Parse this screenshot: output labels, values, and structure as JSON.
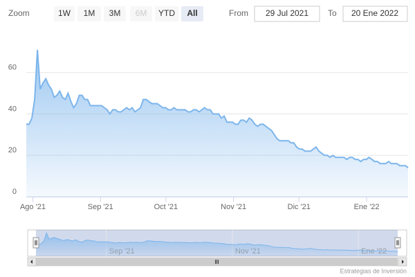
{
  "chart_data": {
    "type": "area",
    "range_selector": {
      "label": "Zoom",
      "buttons": [
        "1W",
        "1M",
        "3M",
        "6M",
        "YTD",
        "All"
      ],
      "selected": 5,
      "disabled": [
        3
      ],
      "from_label": "From",
      "to_label": "To"
    },
    "xlim": [
      {
        "value": "2021-07-29",
        "label": "29 Jul 2021"
      },
      {
        "value": "2022-01-20",
        "label": "20 Ene 2022"
      }
    ],
    "xticks": [
      {
        "value": "2021-08",
        "label": "Ago '21"
      },
      {
        "value": "2021-09",
        "label": "Sep '21"
      },
      {
        "value": "2021-10",
        "label": "Oct '21"
      },
      {
        "value": "2021-11",
        "label": "Nov '21"
      },
      {
        "value": "2021-12",
        "label": "Dic '21"
      },
      {
        "value": "2022-01",
        "label": "Ene '22"
      }
    ],
    "navigator_xticks": [
      1,
      3,
      5
    ],
    "ylim": [
      0,
      80
    ],
    "yticks": [
      0,
      20,
      40,
      60
    ],
    "grid": true,
    "color": "#7cb5ec",
    "values": [
      35,
      35,
      38,
      47,
      71,
      52,
      55,
      57,
      54,
      52,
      48,
      49,
      51,
      48,
      47,
      50,
      46,
      43,
      45,
      49,
      49,
      47,
      47,
      44,
      44,
      44,
      44,
      44,
      43,
      42,
      40,
      42,
      42,
      41,
      41,
      42,
      43,
      42,
      43,
      41,
      42,
      43,
      47,
      47,
      46,
      45,
      45,
      45,
      44,
      43,
      43,
      42,
      42,
      43,
      42,
      42,
      42,
      42,
      41,
      41,
      42,
      42,
      41,
      42,
      43,
      42,
      42,
      40,
      40,
      40,
      38,
      39,
      36,
      36,
      36,
      35,
      35,
      37,
      37,
      36,
      38,
      37,
      35,
      34,
      35,
      35,
      34,
      33,
      32,
      30,
      28,
      27,
      27,
      27,
      27,
      26,
      26,
      24,
      23,
      23,
      22,
      22,
      22,
      23,
      24,
      22,
      21,
      20,
      20,
      19,
      20,
      19,
      19,
      19,
      19,
      18,
      19,
      19,
      18,
      18,
      17,
      18,
      18,
      19,
      18,
      17,
      17,
      16,
      16,
      16,
      17,
      16,
      16,
      16,
      15,
      15,
      15,
      14
    ],
    "credits": "Estrategias de Inversión"
  }
}
